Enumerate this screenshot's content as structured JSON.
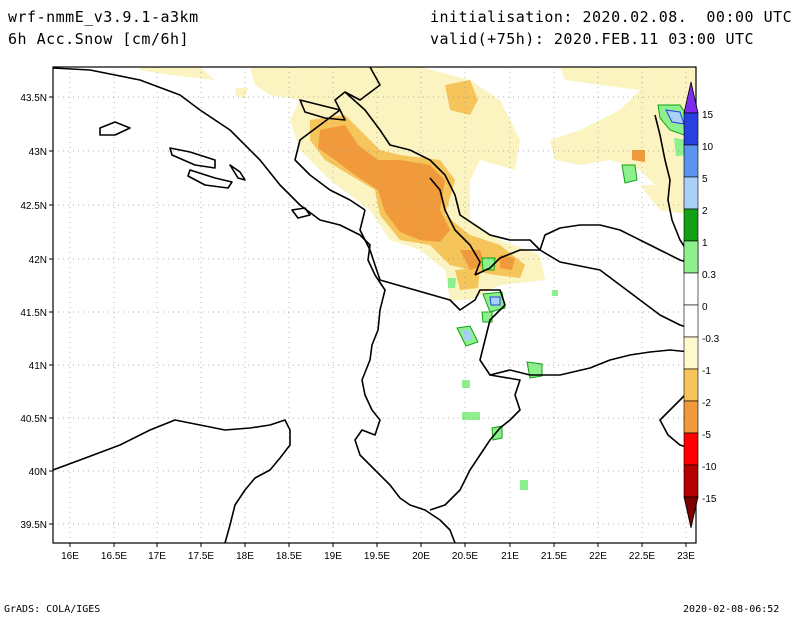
{
  "header": {
    "model": "wrf-nmmE_v3.9.1-a3km",
    "field": "6h Acc.Snow [cm/6h]",
    "init": "initialisation: 2020.02.08.  00:00 UTC",
    "valid": "valid(+75h): 2020.FEB.11 03:00 UTC"
  },
  "axes": {
    "lon_labels": [
      "16E",
      "16.5E",
      "17E",
      "17.5E",
      "18E",
      "18.5E",
      "19E",
      "19.5E",
      "20E",
      "20.5E",
      "21E",
      "21.5E",
      "22E",
      "22.5E",
      "23E"
    ],
    "lat_labels": [
      "43.5N",
      "43N",
      "42.5N",
      "42N",
      "41.5N",
      "41N",
      "40.5N",
      "40N",
      "39.5N"
    ]
  },
  "colorbar": {
    "labels": [
      "15",
      "10",
      "5",
      "2",
      "1",
      "0.3",
      "0",
      "-0.3",
      "-1",
      "-2",
      "-5",
      "-10",
      "-15"
    ],
    "colors": [
      "#7c2cf0",
      "#2a3fe0",
      "#5a94ec",
      "#a8d0f8",
      "#14a014",
      "#2ac82a",
      "#8cf08c",
      "#ffffff",
      "#ffffff",
      "#fffacd",
      "#f5c45a",
      "#f09a3c",
      "#ff0000",
      "#b40000",
      "#7a0000"
    ]
  },
  "colors": {
    "light_snow": "#fbf3c0",
    "moderate_snow": "#f5c45a",
    "heavy_snow": "#f09a3c",
    "snow_green": "#8cf08c",
    "snow_blue": "#a8d0f8"
  },
  "footer": {
    "left": "GrADS: COLA/IGES",
    "right": "2020-02-08-06:52"
  }
}
